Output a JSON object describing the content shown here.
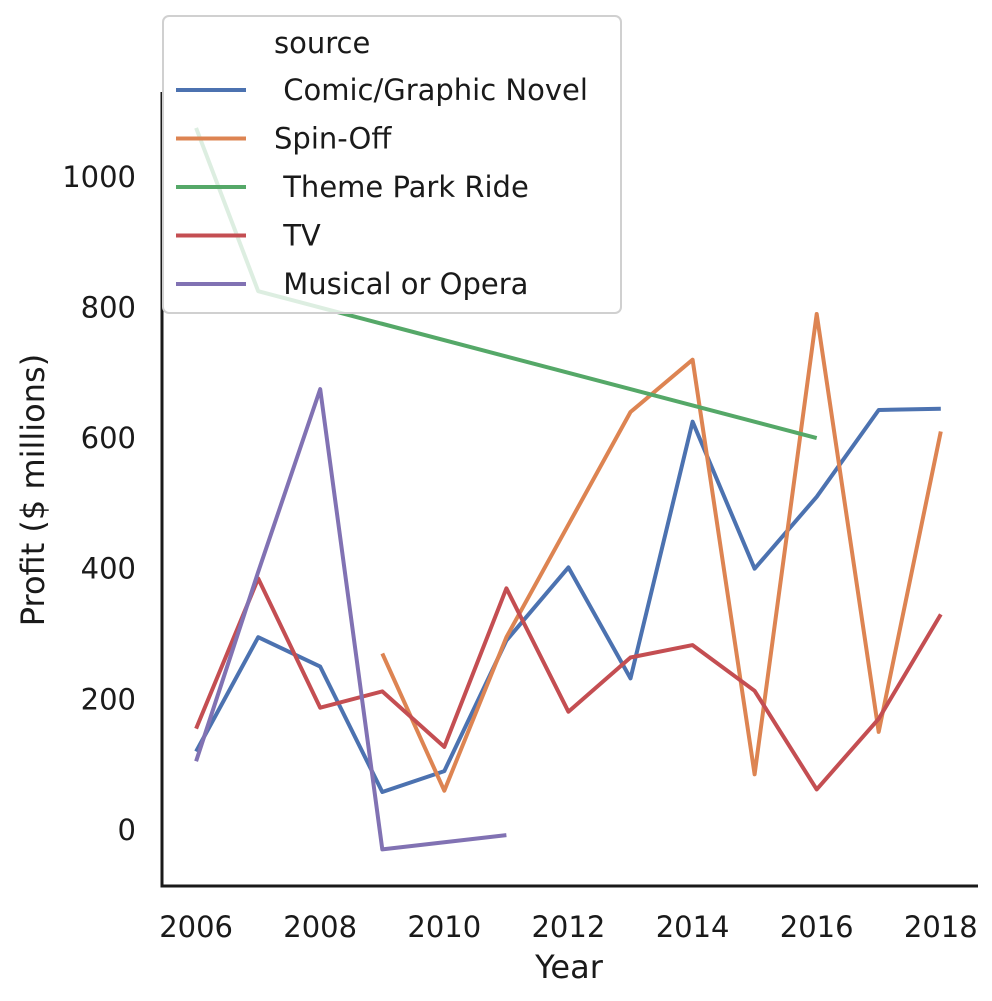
{
  "chart_data": {
    "type": "line",
    "title": "",
    "xlabel": "Year",
    "ylabel": "Profit ($ millions)",
    "xlim": [
      2005.45,
      2018.6
    ],
    "ylim": [
      -86,
      1130
    ],
    "xticks": [
      2006,
      2008,
      2010,
      2012,
      2014,
      2016,
      2018
    ],
    "xtick_labels": [
      "2006",
      "2008",
      "2010",
      "2012",
      "2014",
      "2016",
      "2018"
    ],
    "yticks": [
      0,
      200,
      400,
      600,
      800,
      1000
    ],
    "ytick_labels": [
      "0",
      "200",
      "400",
      "600",
      "800",
      "1000"
    ],
    "grid": false,
    "legend": {
      "title": "source",
      "position": "top-left"
    },
    "series": [
      {
        "name": " Comic/Graphic Novel",
        "color": "#4c72b0",
        "x": [
          2006,
          2007,
          2008,
          2009,
          2010,
          2011,
          2012,
          2013,
          2014,
          2015,
          2016,
          2017,
          2018
        ],
        "y": [
          120,
          295,
          250,
          58,
          90,
          290,
          402,
          232,
          625,
          400,
          510,
          643,
          645
        ]
      },
      {
        "name": "Spin-Off",
        "color": "#dd8452",
        "x": [
          2009,
          2010,
          2011,
          2013,
          2014,
          2015,
          2016,
          2017,
          2018
        ],
        "y": [
          270,
          60,
          295,
          640,
          720,
          85,
          790,
          150,
          610
        ]
      },
      {
        "name": " Theme Park Ride",
        "color": "#55a868",
        "x": [
          2006,
          2007,
          2016
        ],
        "y": [
          1075,
          825,
          600
        ]
      },
      {
        "name": " TV",
        "color": "#c44e52",
        "x": [
          2006,
          2007,
          2008,
          2009,
          2010,
          2011,
          2012,
          2013,
          2014,
          2015,
          2016,
          2017,
          2018
        ],
        "y": [
          155,
          385,
          187,
          212,
          127,
          370,
          181,
          264,
          283,
          213,
          62,
          170,
          330
        ]
      },
      {
        "name": " Musical or Opera",
        "color": "#8172b3",
        "x": [
          2006,
          2007,
          2008,
          2009,
          2011
        ],
        "y": [
          105,
          395,
          675,
          -30,
          -8
        ]
      }
    ]
  }
}
